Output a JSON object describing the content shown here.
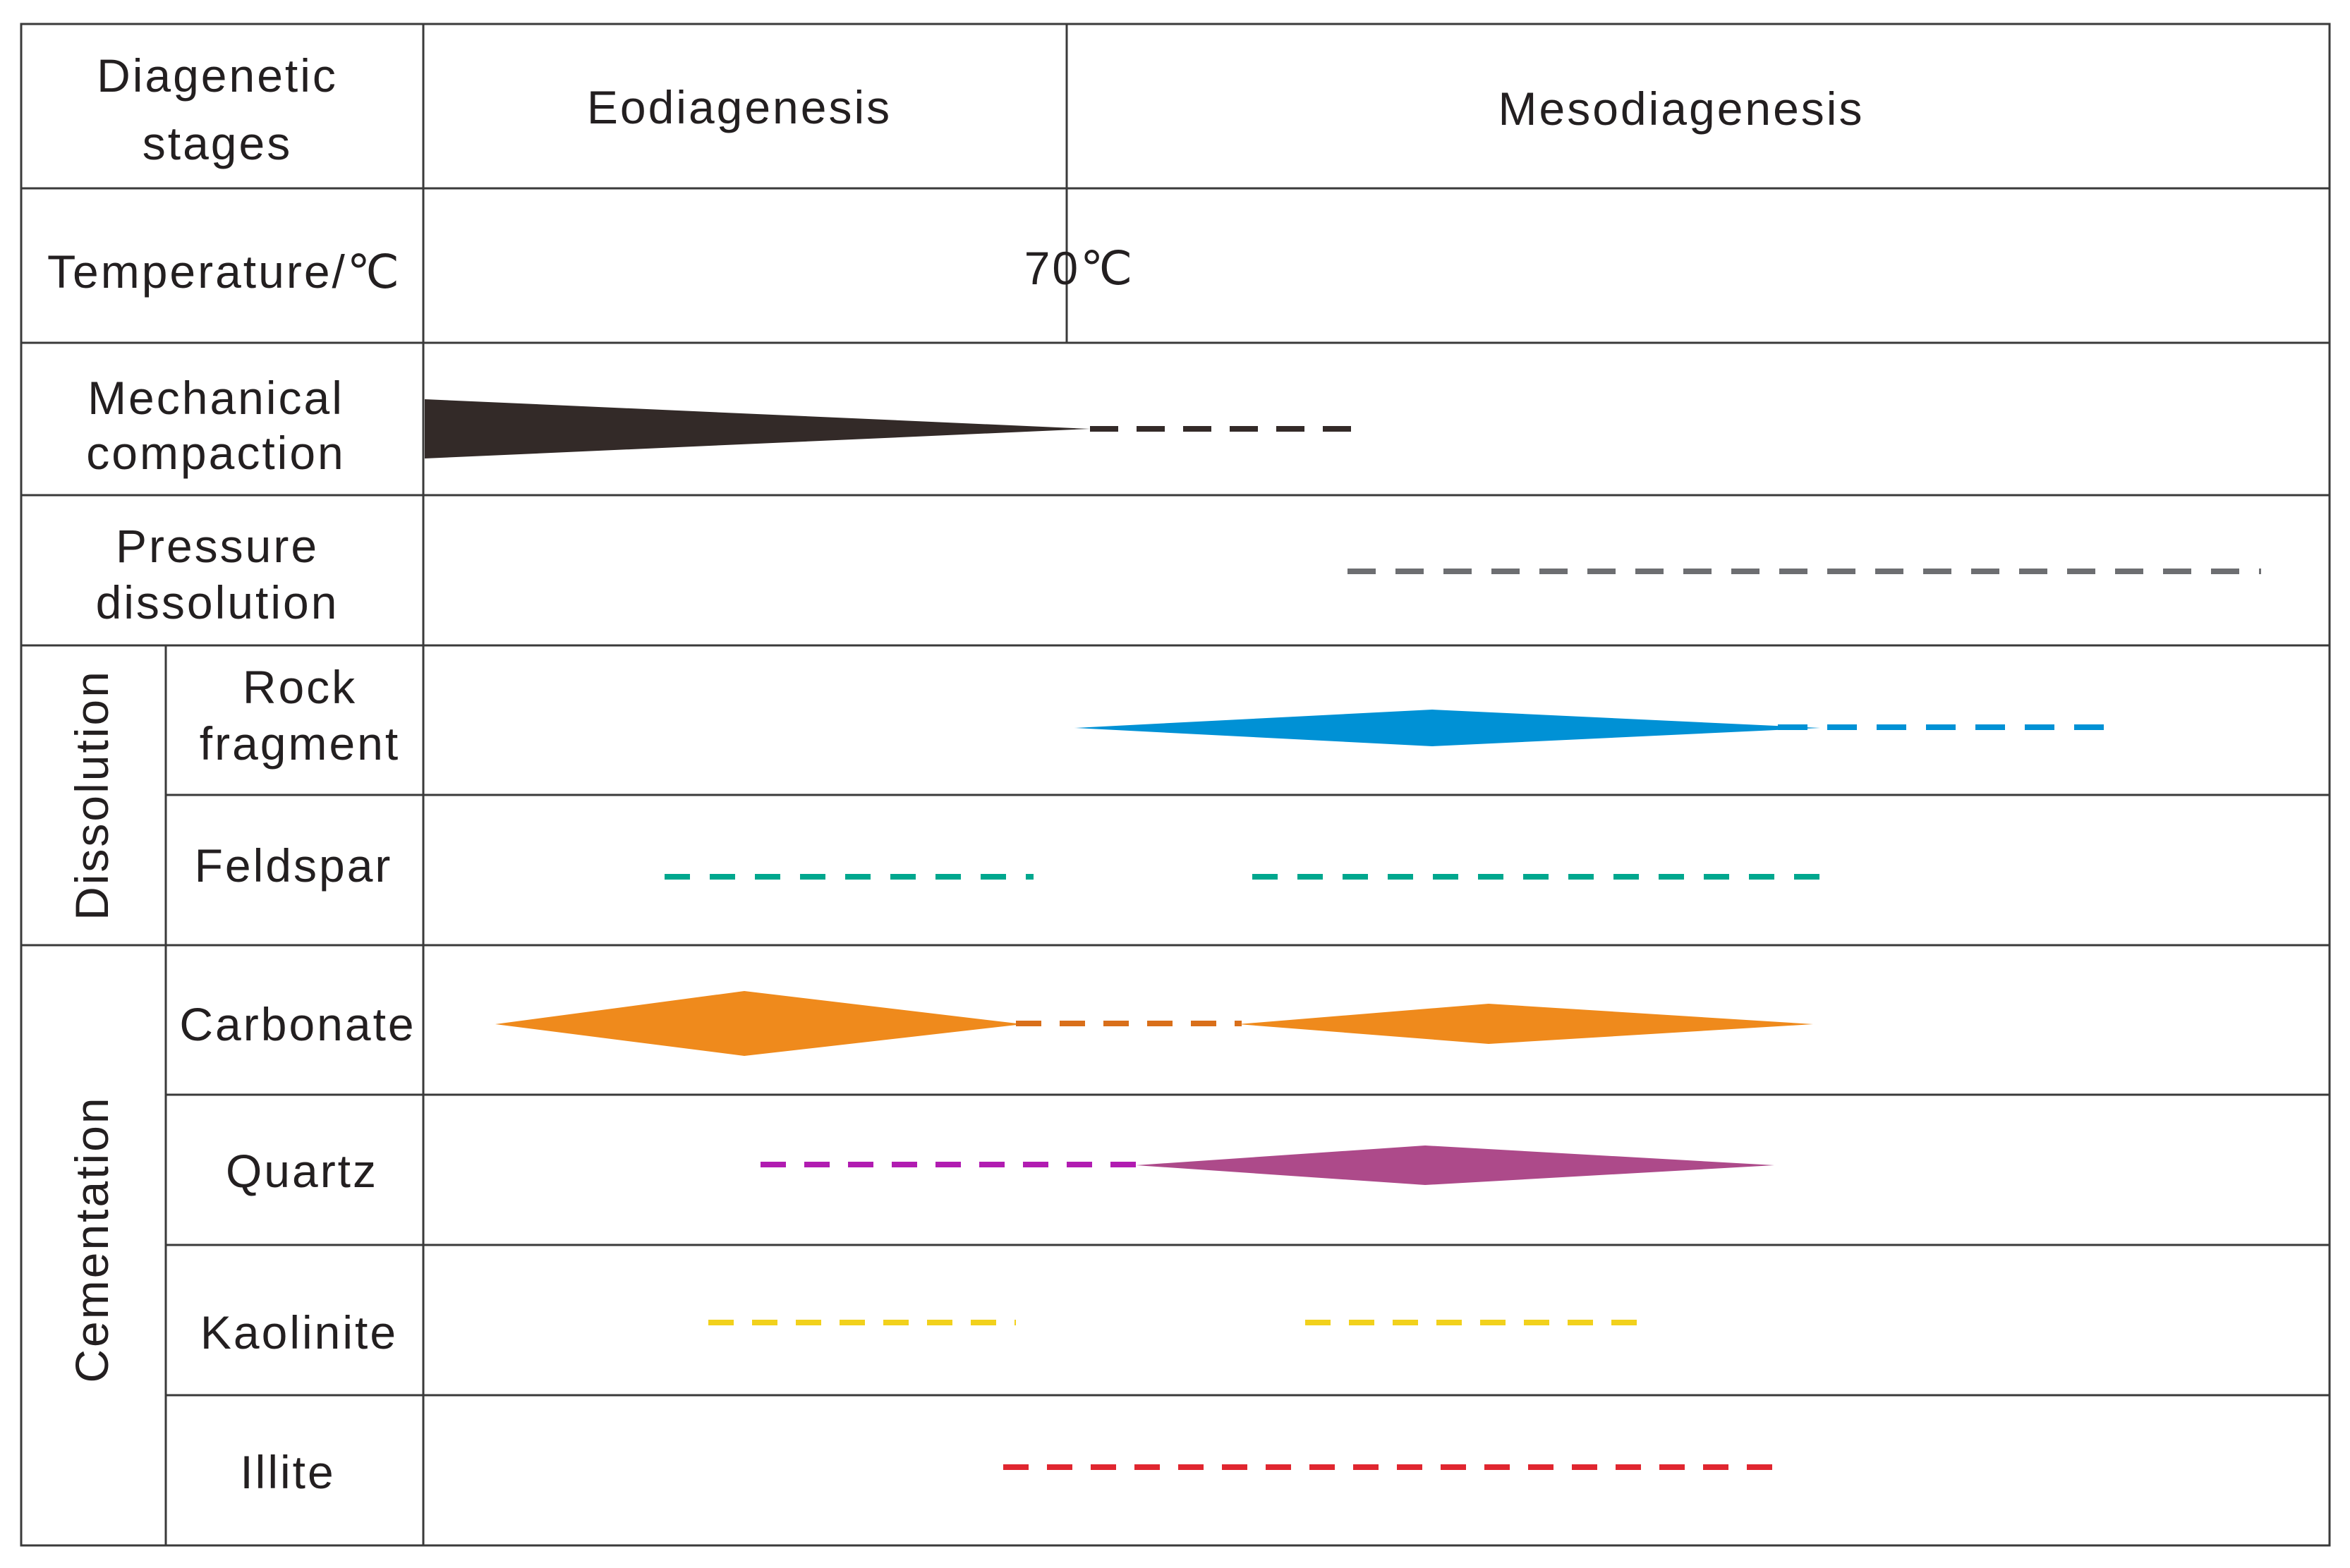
{
  "header": {
    "stage_label_line1": "Diagenetic",
    "stage_label_line2": "stages",
    "eodiagenesis": "Eodiagenesis",
    "mesodiagenesis": "Mesodiagenesis"
  },
  "temperature": {
    "label": "Temperature/℃",
    "marker": "70℃"
  },
  "groups": {
    "dissolution": "Dissolution",
    "cementation": "Cementation"
  },
  "rows": {
    "mechanical_compaction": {
      "line1": "Mechanical",
      "line2": "compaction",
      "color": "#332a28"
    },
    "pressure_dissolution": {
      "line1": "Pressure",
      "line2": "dissolution",
      "color": "#6d6e71"
    },
    "rock_fragment": {
      "line1": "Rock",
      "line2": "fragment",
      "color": "#0091d5"
    },
    "feldspar": {
      "label": "Feldspar",
      "color": "#00a78e"
    },
    "carbonate": {
      "label": "Carbonate",
      "color": "#ef8a1c",
      "dash_color": "#d96f1a"
    },
    "quartz": {
      "label": "Quartz",
      "color": "#ad4a8a",
      "dash_color": "#b11cb1"
    },
    "kaolinite": {
      "label": "Kaolinite",
      "color": "#f2d11c"
    },
    "illite": {
      "label": "Illite",
      "color": "#e0262f"
    }
  }
}
